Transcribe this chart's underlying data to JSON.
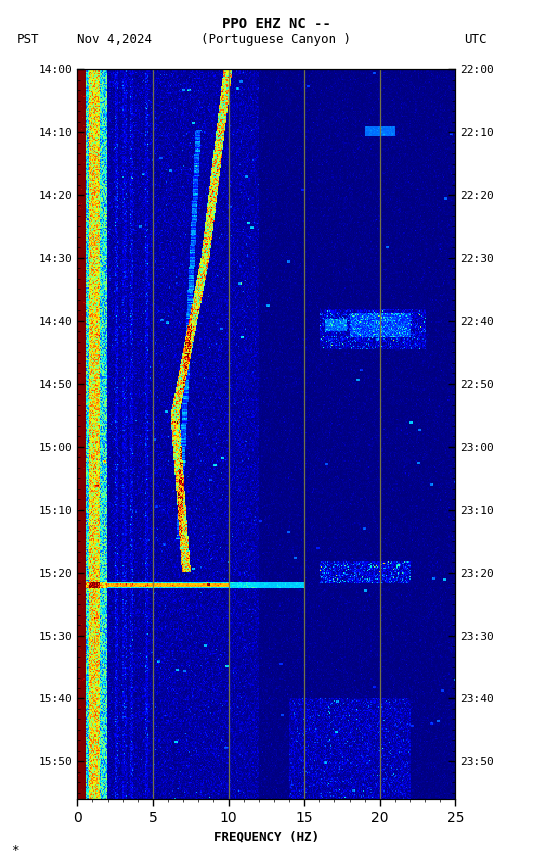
{
  "title_line1": "PPO EHZ NC --",
  "title_line2": "(Portuguese Canyon )",
  "left_label": "PST",
  "date_label": "Nov 4,2024",
  "right_label": "UTC",
  "xlabel": "FREQUENCY (HZ)",
  "freq_min": 0,
  "freq_max": 25,
  "freq_major_ticks": [
    0,
    5,
    10,
    15,
    20,
    25
  ],
  "pst_major_labels": [
    "14:00",
    "14:10",
    "14:20",
    "14:30",
    "14:40",
    "14:50",
    "15:00",
    "15:10",
    "15:20",
    "15:30",
    "15:40",
    "15:50"
  ],
  "utc_major_labels": [
    "22:00",
    "22:10",
    "22:20",
    "22:30",
    "22:40",
    "22:50",
    "23:00",
    "23:10",
    "23:20",
    "23:30",
    "23:40",
    "23:50"
  ],
  "vertical_lines_freq": [
    5,
    10,
    15,
    20
  ],
  "vline_color": "#808040",
  "colormap": "jet",
  "noise_seed": 42,
  "fig_width": 5.52,
  "fig_height": 8.64,
  "dpi": 100,
  "n_time": 600,
  "n_freq": 350,
  "total_minutes": 116
}
